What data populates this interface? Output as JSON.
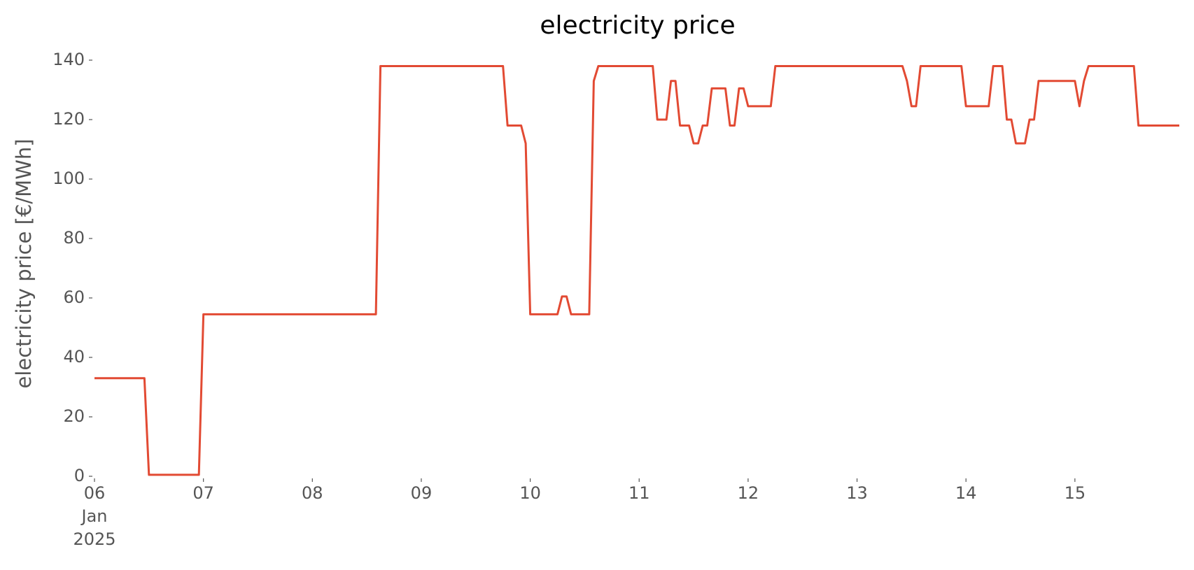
{
  "chart_data": {
    "type": "line",
    "title": "electricity price",
    "ylabel": "electricity price [€/MWh]",
    "x": [
      "2025-01-06T00:00",
      "2025-01-06T11:00",
      "2025-01-06T12:00",
      "2025-01-06T23:00",
      "2025-01-07T00:00",
      "2025-01-08T14:00",
      "2025-01-08T15:00",
      "2025-01-09T18:00",
      "2025-01-09T19:00",
      "2025-01-09T22:00",
      "2025-01-09T23:00",
      "2025-01-10T00:00",
      "2025-01-10T06:00",
      "2025-01-10T07:00",
      "2025-01-10T08:00",
      "2025-01-10T09:00",
      "2025-01-10T13:00",
      "2025-01-10T14:00",
      "2025-01-10T15:00",
      "2025-01-11T03:00",
      "2025-01-11T04:00",
      "2025-01-11T06:00",
      "2025-01-11T07:00",
      "2025-01-11T08:00",
      "2025-01-11T09:00",
      "2025-01-11T11:00",
      "2025-01-11T12:00",
      "2025-01-11T13:00",
      "2025-01-11T14:00",
      "2025-01-11T15:00",
      "2025-01-11T16:00",
      "2025-01-11T19:00",
      "2025-01-11T20:00",
      "2025-01-11T21:00",
      "2025-01-11T22:00",
      "2025-01-11T23:00",
      "2025-01-12T00:00",
      "2025-01-12T05:00",
      "2025-01-12T06:00",
      "2025-01-13T10:00",
      "2025-01-13T11:00",
      "2025-01-13T12:00",
      "2025-01-13T13:00",
      "2025-01-13T14:00",
      "2025-01-13T23:00",
      "2025-01-14T00:00",
      "2025-01-14T05:00",
      "2025-01-14T06:00",
      "2025-01-14T08:00",
      "2025-01-14T09:00",
      "2025-01-14T10:00",
      "2025-01-14T11:00",
      "2025-01-14T13:00",
      "2025-01-14T14:00",
      "2025-01-14T15:00",
      "2025-01-14T16:00",
      "2025-01-15T00:00",
      "2025-01-15T01:00",
      "2025-01-15T02:00",
      "2025-01-15T03:00",
      "2025-01-15T13:00",
      "2025-01-15T14:00",
      "2025-01-15T23:00"
    ],
    "series": [
      {
        "name": "electricity price",
        "color": "#E24A33",
        "values": [
          33,
          33,
          0.5,
          0.5,
          54.5,
          54.5,
          138,
          138,
          118,
          118,
          112,
          54.5,
          54.5,
          60.5,
          60.5,
          54.5,
          54.5,
          133,
          138,
          138,
          120,
          120,
          133,
          133,
          118,
          118,
          112,
          112,
          118,
          118,
          130.5,
          130.5,
          118,
          118,
          130.5,
          130.5,
          124.5,
          124.5,
          138,
          138,
          133,
          124.5,
          124.5,
          138,
          138,
          124.5,
          124.5,
          138,
          138,
          120,
          120,
          112,
          112,
          120,
          120,
          133,
          133,
          124.5,
          133,
          138,
          138,
          118,
          118
        ]
      }
    ],
    "xlim": [
      "2025-01-06T00:00",
      "2025-01-15T23:00"
    ],
    "xticks": [
      {
        "value": "2025-01-06",
        "label": "06\nJan\n2025"
      },
      {
        "value": "2025-01-07",
        "label": "07"
      },
      {
        "value": "2025-01-08",
        "label": "08"
      },
      {
        "value": "2025-01-09",
        "label": "09"
      },
      {
        "value": "2025-01-10",
        "label": "10"
      },
      {
        "value": "2025-01-11",
        "label": "11"
      },
      {
        "value": "2025-01-12",
        "label": "12"
      },
      {
        "value": "2025-01-13",
        "label": "13"
      },
      {
        "value": "2025-01-14",
        "label": "14"
      },
      {
        "value": "2025-01-15",
        "label": "15"
      }
    ],
    "ylim": [
      0,
      140
    ],
    "yticks": [
      0,
      20,
      40,
      60,
      80,
      100,
      120,
      140
    ],
    "grid": false
  }
}
